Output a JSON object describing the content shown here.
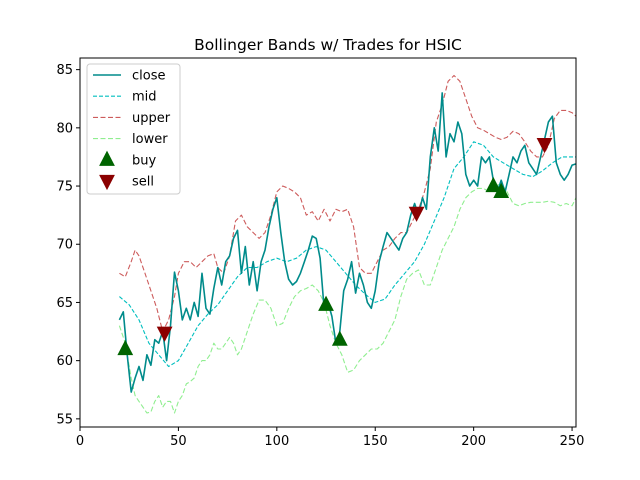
{
  "chart_data": {
    "type": "line",
    "title": "Bollinger Bands w/ Trades for HSIC",
    "xlabel": "",
    "ylabel": "",
    "xlim": [
      0,
      252
    ],
    "ylim": [
      54.3,
      86.0
    ],
    "x_ticks": [
      0,
      50,
      100,
      150,
      200,
      250
    ],
    "y_ticks": [
      55,
      60,
      65,
      70,
      75,
      80,
      85
    ],
    "grid": false,
    "legend_position": "top-left",
    "series": [
      {
        "name": "close",
        "color": "#008b8b",
        "style": "solid",
        "x": [
          20,
          22,
          24,
          26,
          28,
          30,
          32,
          34,
          36,
          38,
          40,
          42,
          44,
          46,
          48,
          50,
          52,
          54,
          56,
          58,
          60,
          62,
          64,
          66,
          68,
          70,
          72,
          74,
          76,
          78,
          80,
          82,
          84,
          86,
          88,
          90,
          92,
          94,
          96,
          98,
          100,
          102,
          104,
          106,
          108,
          110,
          112,
          114,
          116,
          118,
          120,
          122,
          124,
          126,
          128,
          130,
          132,
          134,
          136,
          138,
          140,
          142,
          144,
          146,
          148,
          150,
          152,
          154,
          156,
          158,
          160,
          162,
          164,
          166,
          168,
          170,
          172,
          174,
          176,
          178,
          180,
          182,
          184,
          186,
          188,
          190,
          192,
          194,
          196,
          198,
          200,
          202,
          204,
          206,
          208,
          210,
          212,
          214,
          216,
          218,
          220,
          222,
          224,
          226,
          228,
          230,
          232,
          234,
          236,
          238,
          240,
          242,
          244,
          246,
          248,
          250,
          252
        ],
        "y": [
          63.5,
          64.2,
          60.5,
          57.3,
          58.5,
          59.5,
          58.3,
          60.5,
          59.6,
          61.8,
          61.5,
          62.5,
          60.0,
          63.0,
          67.6,
          66.0,
          63.5,
          64.5,
          63.5,
          65.0,
          63.8,
          67.5,
          64.5,
          64.0,
          66.2,
          68.0,
          66.5,
          68.5,
          69.0,
          70.5,
          71.2,
          67.5,
          69.8,
          66.5,
          68.5,
          66.0,
          68.5,
          69.5,
          71.5,
          73.0,
          74.0,
          71.0,
          68.5,
          67.0,
          66.5,
          66.8,
          67.5,
          68.5,
          69.5,
          70.7,
          70.5,
          68.8,
          64.5,
          65.0,
          63.8,
          61.5,
          62.5,
          66.0,
          67.0,
          68.5,
          65.8,
          67.5,
          66.5,
          65.0,
          64.5,
          66.0,
          68.5,
          69.8,
          71.0,
          70.5,
          70.0,
          69.5,
          70.5,
          71.0,
          72.5,
          73.5,
          72.5,
          74.0,
          73.0,
          77.5,
          80.0,
          78.0,
          83.0,
          77.5,
          79.5,
          78.8,
          80.5,
          79.5,
          76.0,
          75.0,
          75.5,
          75.0,
          77.5,
          77.0,
          77.5,
          75.5,
          74.5,
          75.5,
          74.5,
          76.0,
          77.5,
          77.0,
          78.0,
          78.5,
          77.0,
          76.5,
          76.0,
          77.5,
          79.0,
          80.5,
          81.0,
          77.0,
          76.0,
          75.5,
          76.0,
          76.8,
          76.9
        ]
      },
      {
        "name": "mid",
        "color": "#00bfbf",
        "style": "dashed",
        "x": [
          20,
          25,
          30,
          35,
          40,
          45,
          50,
          55,
          60,
          65,
          70,
          75,
          80,
          85,
          90,
          95,
          100,
          105,
          110,
          115,
          120,
          125,
          130,
          135,
          140,
          145,
          150,
          155,
          160,
          165,
          170,
          175,
          180,
          185,
          190,
          195,
          200,
          205,
          210,
          215,
          220,
          225,
          230,
          235,
          240,
          245,
          250,
          252
        ],
        "y": [
          65.5,
          64.8,
          63.5,
          61.5,
          60.5,
          59.5,
          60.0,
          61.5,
          63.0,
          64.0,
          64.8,
          66.0,
          67.2,
          68.0,
          68.0,
          68.5,
          68.8,
          68.5,
          68.8,
          69.5,
          69.8,
          69.5,
          68.5,
          67.5,
          66.5,
          65.7,
          65.0,
          65.3,
          66.5,
          67.5,
          68.5,
          70.0,
          72.0,
          74.0,
          76.5,
          77.5,
          78.8,
          78.5,
          77.5,
          77.0,
          76.5,
          76.0,
          75.8,
          76.3,
          77.0,
          77.5,
          77.5,
          77.5
        ]
      },
      {
        "name": "upper",
        "color": "#cd5c5c",
        "style": "dashed",
        "x": [
          20,
          23,
          26,
          28,
          30,
          33,
          36,
          39,
          42,
          45,
          48,
          50,
          53,
          56,
          59,
          62,
          65,
          68,
          70,
          73,
          76,
          79,
          82,
          85,
          88,
          91,
          94,
          97,
          100,
          103,
          106,
          109,
          112,
          115,
          118,
          121,
          124,
          127,
          130,
          133,
          136,
          139,
          142,
          145,
          148,
          151,
          154,
          157,
          160,
          163,
          166,
          169,
          172,
          175,
          178,
          181,
          184,
          187,
          190,
          193,
          196,
          199,
          202,
          205,
          208,
          211,
          214,
          217,
          220,
          223,
          226,
          229,
          232,
          235,
          238,
          241,
          244,
          247,
          250,
          252
        ],
        "y": [
          67.5,
          67.2,
          68.5,
          69.5,
          69.0,
          67.5,
          66.0,
          64.5,
          62.5,
          63.5,
          65.5,
          67.5,
          68.5,
          68.5,
          68.0,
          68.5,
          69.0,
          69.2,
          68.0,
          67.5,
          69.0,
          72.0,
          72.5,
          71.5,
          71.0,
          70.5,
          71.0,
          72.5,
          74.5,
          75.0,
          74.8,
          74.5,
          74.0,
          72.5,
          72.8,
          72.0,
          73.0,
          72.0,
          73.0,
          72.8,
          73.0,
          71.5,
          68.0,
          67.5,
          67.5,
          68.5,
          69.5,
          69.8,
          70.5,
          71.0,
          71.0,
          72.0,
          73.0,
          74.5,
          76.5,
          80.5,
          82.0,
          84.0,
          84.5,
          84.0,
          82.5,
          81.0,
          80.0,
          79.8,
          79.5,
          79.2,
          79.0,
          79.2,
          79.7,
          79.5,
          78.8,
          78.0,
          77.5,
          77.5,
          78.5,
          80.8,
          81.5,
          81.5,
          81.3,
          81.0
        ]
      },
      {
        "name": "lower",
        "color": "#90ee90",
        "style": "dashed",
        "x": [
          20,
          23,
          26,
          28,
          30,
          32,
          34,
          36,
          38,
          40,
          42,
          44,
          46,
          48,
          50,
          52,
          54,
          56,
          58,
          60,
          62,
          64,
          66,
          68,
          70,
          72,
          74,
          76,
          78,
          80,
          82,
          85,
          88,
          91,
          94,
          97,
          100,
          103,
          106,
          109,
          112,
          115,
          118,
          121,
          124,
          127,
          130,
          133,
          136,
          139,
          142,
          145,
          148,
          151,
          154,
          157,
          160,
          163,
          166,
          169,
          172,
          175,
          178,
          181,
          184,
          187,
          190,
          193,
          196,
          199,
          202,
          205,
          208,
          211,
          214,
          217,
          220,
          223,
          226,
          229,
          232,
          235,
          238,
          241,
          244,
          247,
          250,
          252
        ],
        "y": [
          63.0,
          61.5,
          58.5,
          57.0,
          56.5,
          56.0,
          55.5,
          55.6,
          56.5,
          57.0,
          56.0,
          56.5,
          56.5,
          55.5,
          56.5,
          57.0,
          58.0,
          58.2,
          58.5,
          59.5,
          60.0,
          60.0,
          60.5,
          61.5,
          61.0,
          61.0,
          61.5,
          62.0,
          61.5,
          60.5,
          61.0,
          62.5,
          64.0,
          65.2,
          65.2,
          64.5,
          63.0,
          63.2,
          64.5,
          65.5,
          66.0,
          66.2,
          66.5,
          66.0,
          65.0,
          63.0,
          61.5,
          60.5,
          59.0,
          59.2,
          60.0,
          60.5,
          61.0,
          61.0,
          61.5,
          62.5,
          63.5,
          65.5,
          67.0,
          67.5,
          67.8,
          66.5,
          66.5,
          68.0,
          69.5,
          70.5,
          71.5,
          73.0,
          74.0,
          74.5,
          74.8,
          74.8,
          74.5,
          75.0,
          75.2,
          74.5,
          73.5,
          73.3,
          73.5,
          73.6,
          73.6,
          73.6,
          73.7,
          73.6,
          73.3,
          73.5,
          73.3,
          74.0
        ]
      },
      {
        "name": "buy",
        "color": "#006400",
        "marker": "triangle-up",
        "x": [
          23,
          125,
          132,
          210,
          214
        ],
        "y": [
          61.0,
          64.8,
          61.8,
          75.0,
          74.5
        ]
      },
      {
        "name": "sell",
        "color": "#8b0000",
        "marker": "triangle-down",
        "x": [
          43,
          171,
          236
        ],
        "y": [
          62.4,
          72.7,
          78.6
        ]
      }
    ]
  }
}
